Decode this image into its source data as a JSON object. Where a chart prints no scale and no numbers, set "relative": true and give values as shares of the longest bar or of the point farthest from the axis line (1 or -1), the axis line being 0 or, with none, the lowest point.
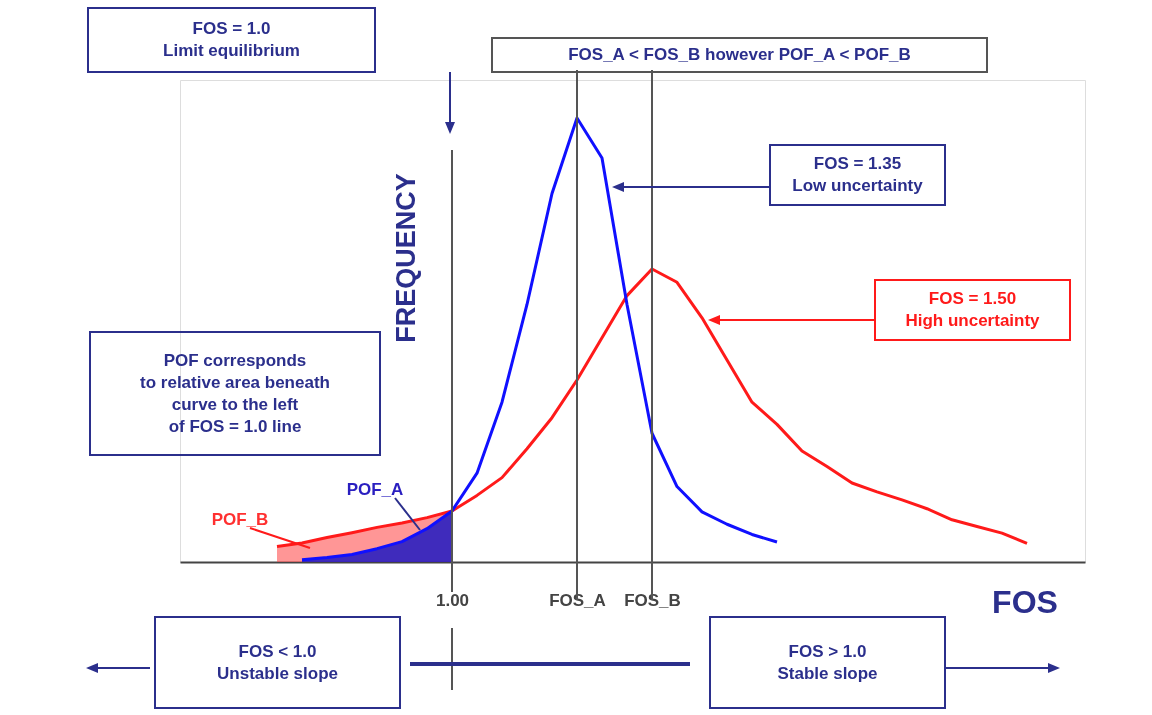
{
  "chart_data": {
    "type": "line",
    "relative": true,
    "xlabel": "FOS",
    "ylabel": "FREQUENCY",
    "categories": [
      null,
      null,
      null,
      null,
      null,
      null,
      null,
      null,
      "1.00",
      null,
      null,
      null,
      null,
      "FOS_A",
      null,
      null,
      "FOS_B",
      null,
      null,
      null,
      null,
      null,
      null,
      null,
      null,
      null,
      null,
      null,
      null,
      null,
      null,
      null,
      null,
      null
    ],
    "series": [
      {
        "name": "POF_B",
        "type": "area",
        "color": "#ff4040",
        "values": [
          null,
          0.035,
          0.043,
          0.055,
          0.066,
          0.078,
          0.088,
          0.1,
          0.115,
          null,
          null,
          null,
          null,
          null,
          null,
          null,
          null,
          null,
          null,
          null,
          null,
          null,
          null,
          null,
          null,
          null,
          null,
          null,
          null,
          null,
          null,
          null,
          null,
          null
        ]
      },
      {
        "name": "POF_A",
        "type": "area",
        "color": "#2a1fc0",
        "values": [
          null,
          null,
          0.005,
          0.01,
          0.017,
          0.03,
          0.046,
          0.075,
          0.115,
          null,
          null,
          null,
          null,
          null,
          null,
          null,
          null,
          null,
          null,
          null,
          null,
          null,
          null,
          null,
          null,
          null,
          null,
          null,
          null,
          null,
          null,
          null,
          null,
          null
        ]
      },
      {
        "color": "#ff1a1a",
        "values": [
          null,
          0.035,
          0.043,
          0.055,
          0.066,
          0.078,
          0.088,
          0.1,
          0.115,
          0.15,
          0.19,
          0.255,
          0.325,
          0.41,
          0.505,
          0.6,
          0.66,
          0.63,
          0.55,
          0.455,
          0.36,
          0.31,
          0.25,
          0.215,
          0.178,
          0.158,
          0.14,
          0.12,
          0.095,
          0.08,
          0.065,
          0.042,
          null,
          null
        ]
      },
      {
        "color": "#1010ff",
        "values": [
          null,
          null,
          0.005,
          0.01,
          0.017,
          0.03,
          0.046,
          0.075,
          0.115,
          0.2,
          0.36,
          0.58,
          0.83,
          1.0,
          0.91,
          0.58,
          0.29,
          0.17,
          0.113,
          0.085,
          0.062,
          0.045,
          null,
          null,
          null,
          null,
          null,
          null,
          null,
          null,
          null,
          null,
          null,
          null
        ]
      }
    ],
    "ref_lines": [
      {
        "axis": "x",
        "value": "1.00",
        "color": "#555555"
      },
      {
        "axis": "x",
        "value": "FOS_A",
        "color": "#555555"
      },
      {
        "axis": "x",
        "value": "FOS_B",
        "color": "#555555"
      }
    ],
    "annotations": [
      "FOS = 1.0\nLimit equilibrium",
      "FOS_A < FOS_B however POF_A < POF_B",
      "FOS = 1.35\nLow uncertainty",
      "FOS = 1.50\nHigh uncertainty",
      "POF corresponds\nto relative area beneath\ncurve to the left\nof FOS = 1.0 line",
      "FOS < 1.0\nUnstable slope",
      "FOS > 1.0\nStable slope"
    ],
    "grid": false,
    "marker": "none",
    "line_style": "solid"
  }
}
